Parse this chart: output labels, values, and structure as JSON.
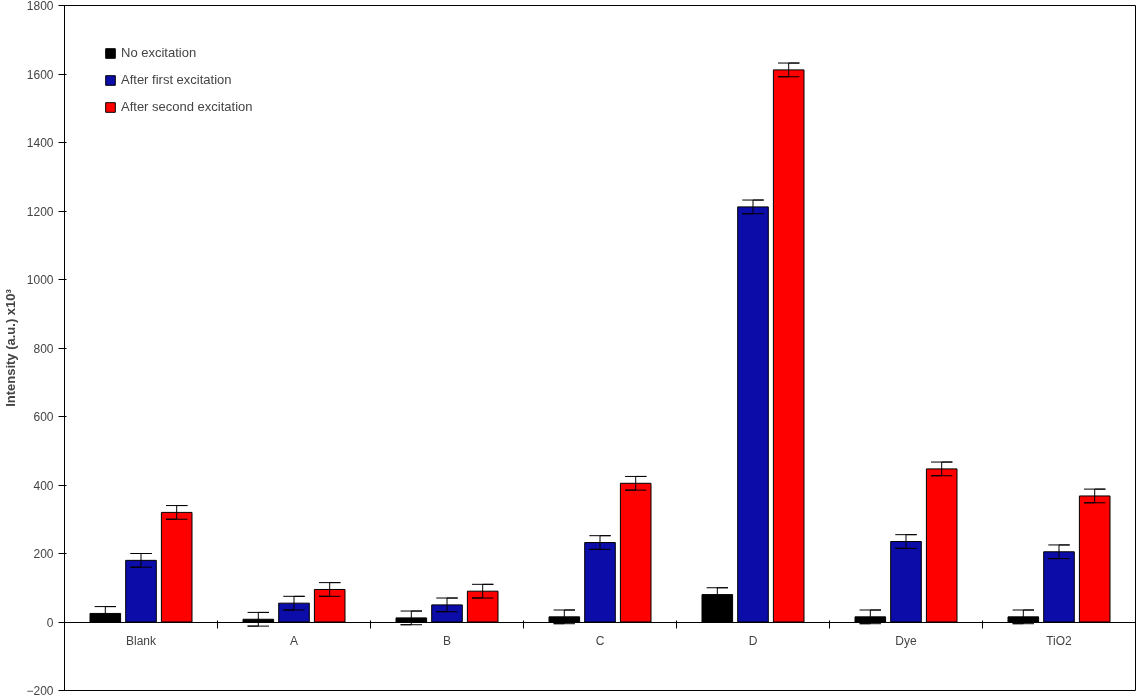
{
  "chart_data": {
    "type": "bar",
    "ylabel": "Intensity (a.u.) x10³",
    "categories": [
      "Blank",
      "A",
      "B",
      "C",
      "D",
      "Dye",
      "TiO2"
    ],
    "series": [
      {
        "name": "No excitation",
        "color": "#000000",
        "values": [
          25,
          8,
          12,
          15,
          80,
          15,
          15
        ],
        "errors": [
          20,
          20,
          20,
          20,
          20,
          20,
          20
        ]
      },
      {
        "name": "After first excitation",
        "color": "#0c0ca8",
        "values": [
          180,
          55,
          50,
          232,
          1212,
          235,
          205
        ],
        "errors": [
          20,
          20,
          20,
          20,
          20,
          20,
          20
        ]
      },
      {
        "name": "After second excitation",
        "color": "#ff0000",
        "values": [
          320,
          95,
          90,
          405,
          1612,
          447,
          368
        ],
        "errors": [
          20,
          20,
          20,
          20,
          20,
          20,
          20
        ]
      }
    ],
    "ylim": [
      -200,
      1800
    ],
    "yticks": [
      -200,
      0,
      200,
      400,
      600,
      800,
      1000,
      1200,
      1400,
      1600,
      1800
    ],
    "grid": false,
    "legend": "top left"
  }
}
